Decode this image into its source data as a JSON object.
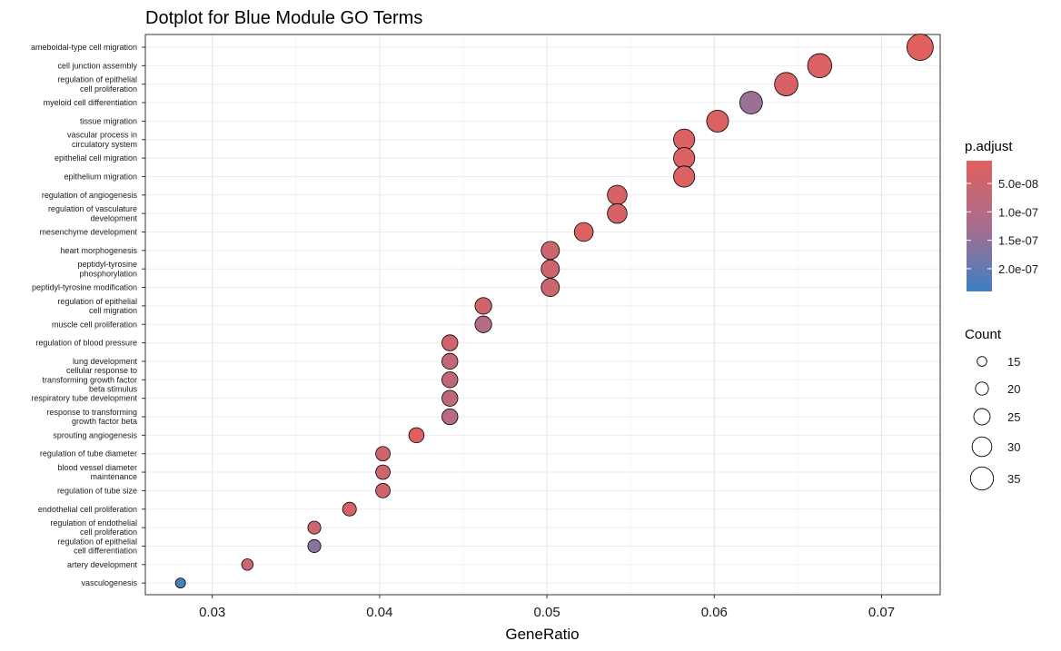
{
  "chart_data": {
    "type": "scatter",
    "title": "Dotplot for Blue Module GO Terms",
    "xlabel": "GeneRatio",
    "xlim": [
      0.026,
      0.0735
    ],
    "xticks": [
      0.03,
      0.04,
      0.05,
      0.06,
      0.07
    ],
    "xtick_labels": [
      "0.03",
      "0.04",
      "0.05",
      "0.06",
      "0.07"
    ],
    "grid": true,
    "colors": {
      "low_padjust": "#E0605E",
      "high_padjust": "#3D7FC4"
    },
    "points": [
      {
        "term": [
          "ameboidal-type cell migration"
        ],
        "gene_ratio": 0.0723,
        "count": 36,
        "p_adjust": 1e-08
      },
      {
        "term": [
          "cell junction assembly"
        ],
        "gene_ratio": 0.0663,
        "count": 33,
        "p_adjust": 2e-08
      },
      {
        "term": [
          "regulation of epithelial",
          "cell proliferation"
        ],
        "gene_ratio": 0.0643,
        "count": 32,
        "p_adjust": 3e-08
      },
      {
        "term": [
          "myeloid cell differentiation"
        ],
        "gene_ratio": 0.0622,
        "count": 31,
        "p_adjust": 1.4e-07
      },
      {
        "term": [
          "tissue migration"
        ],
        "gene_ratio": 0.0602,
        "count": 30,
        "p_adjust": 2e-08
      },
      {
        "term": [
          "vascular process in",
          "circulatory system"
        ],
        "gene_ratio": 0.0582,
        "count": 29,
        "p_adjust": 2e-08
      },
      {
        "term": [
          "epithelial cell migration"
        ],
        "gene_ratio": 0.0582,
        "count": 29,
        "p_adjust": 2e-08
      },
      {
        "term": [
          "epithelium migration"
        ],
        "gene_ratio": 0.0582,
        "count": 29,
        "p_adjust": 2e-08
      },
      {
        "term": [
          "regulation of angiogenesis"
        ],
        "gene_ratio": 0.0542,
        "count": 27,
        "p_adjust": 3e-08
      },
      {
        "term": [
          "regulation of vasculature",
          "development"
        ],
        "gene_ratio": 0.0542,
        "count": 27,
        "p_adjust": 3e-08
      },
      {
        "term": [
          "mesenchyme development"
        ],
        "gene_ratio": 0.0522,
        "count": 26,
        "p_adjust": 2e-08
      },
      {
        "term": [
          "heart morphogenesis"
        ],
        "gene_ratio": 0.0502,
        "count": 25,
        "p_adjust": 5e-08
      },
      {
        "term": [
          "peptidyl-tyrosine",
          "phosphorylation"
        ],
        "gene_ratio": 0.0502,
        "count": 25,
        "p_adjust": 5e-08
      },
      {
        "term": [
          "peptidyl-tyrosine modification"
        ],
        "gene_ratio": 0.0502,
        "count": 25,
        "p_adjust": 5.5e-08
      },
      {
        "term": [
          "regulation of epithelial",
          "cell migration"
        ],
        "gene_ratio": 0.0462,
        "count": 23,
        "p_adjust": 4e-08
      },
      {
        "term": [
          "muscle cell proliferation"
        ],
        "gene_ratio": 0.0462,
        "count": 23,
        "p_adjust": 1e-07
      },
      {
        "term": [
          "regulation of blood pressure"
        ],
        "gene_ratio": 0.0442,
        "count": 22,
        "p_adjust": 4e-08
      },
      {
        "term": [
          "lung development"
        ],
        "gene_ratio": 0.0442,
        "count": 22,
        "p_adjust": 7e-08
      },
      {
        "term": [
          "cellular response to",
          "transforming growth factor",
          "beta stimulus"
        ],
        "gene_ratio": 0.0442,
        "count": 22,
        "p_adjust": 7.5e-08
      },
      {
        "term": [
          "respiratory tube development"
        ],
        "gene_ratio": 0.0442,
        "count": 22,
        "p_adjust": 8e-08
      },
      {
        "term": [
          "response to transforming",
          "growth factor beta"
        ],
        "gene_ratio": 0.0442,
        "count": 22,
        "p_adjust": 9.5e-08
      },
      {
        "term": [
          "sprouting angiogenesis"
        ],
        "gene_ratio": 0.0422,
        "count": 21,
        "p_adjust": 1e-08
      },
      {
        "term": [
          "regulation of tube diameter"
        ],
        "gene_ratio": 0.0402,
        "count": 20,
        "p_adjust": 4e-08
      },
      {
        "term": [
          "blood vessel diameter",
          "maintenance"
        ],
        "gene_ratio": 0.0402,
        "count": 20,
        "p_adjust": 4e-08
      },
      {
        "term": [
          "regulation of tube size"
        ],
        "gene_ratio": 0.0402,
        "count": 20,
        "p_adjust": 4e-08
      },
      {
        "term": [
          "endothelial cell proliferation"
        ],
        "gene_ratio": 0.0382,
        "count": 19,
        "p_adjust": 3e-08
      },
      {
        "term": [
          "regulation of endothelial",
          "cell proliferation"
        ],
        "gene_ratio": 0.0361,
        "count": 18,
        "p_adjust": 5e-08
      },
      {
        "term": [
          "regulation of epithelial",
          "cell differentiation"
        ],
        "gene_ratio": 0.0361,
        "count": 18,
        "p_adjust": 1.6e-07
      },
      {
        "term": [
          "artery development"
        ],
        "gene_ratio": 0.0321,
        "count": 16,
        "p_adjust": 5e-08
      },
      {
        "term": [
          "vasculogenesis"
        ],
        "gene_ratio": 0.0281,
        "count": 14,
        "p_adjust": 2.3e-07
      }
    ],
    "color_legend": {
      "title": "p.adjust",
      "range": [
        1e-08,
        2.4e-07
      ],
      "ticks": [
        5e-08,
        1e-07,
        1.5e-07,
        2e-07
      ],
      "labels": [
        "5.0e-08",
        "1.0e-07",
        "1.5e-07",
        "2.0e-07"
      ]
    },
    "size_legend": {
      "title": "Count",
      "values": [
        15,
        20,
        25,
        30,
        35
      ],
      "labels": [
        "15",
        "20",
        "25",
        "30",
        "35"
      ]
    }
  }
}
